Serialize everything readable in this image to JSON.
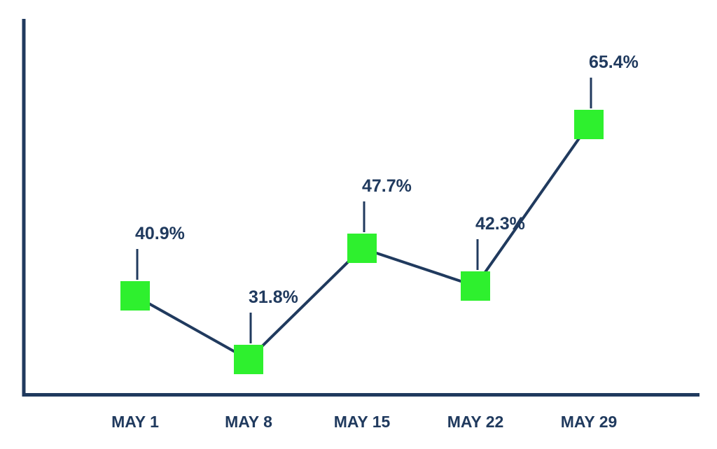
{
  "chart_data": {
    "type": "line",
    "categories": [
      "MAY 1",
      "MAY 8",
      "MAY 15",
      "MAY 22",
      "MAY 29"
    ],
    "values": [
      40.9,
      31.8,
      47.7,
      42.3,
      65.4
    ],
    "data_labels": [
      "40.9%",
      "31.8%",
      "47.7%",
      "42.3%",
      "65.4%"
    ],
    "ylim": [
      20,
      80
    ],
    "grid": false,
    "legend": "none",
    "colors": {
      "line": "#203a5e",
      "marker": "#2ef02e",
      "text": "#203a5e"
    }
  }
}
